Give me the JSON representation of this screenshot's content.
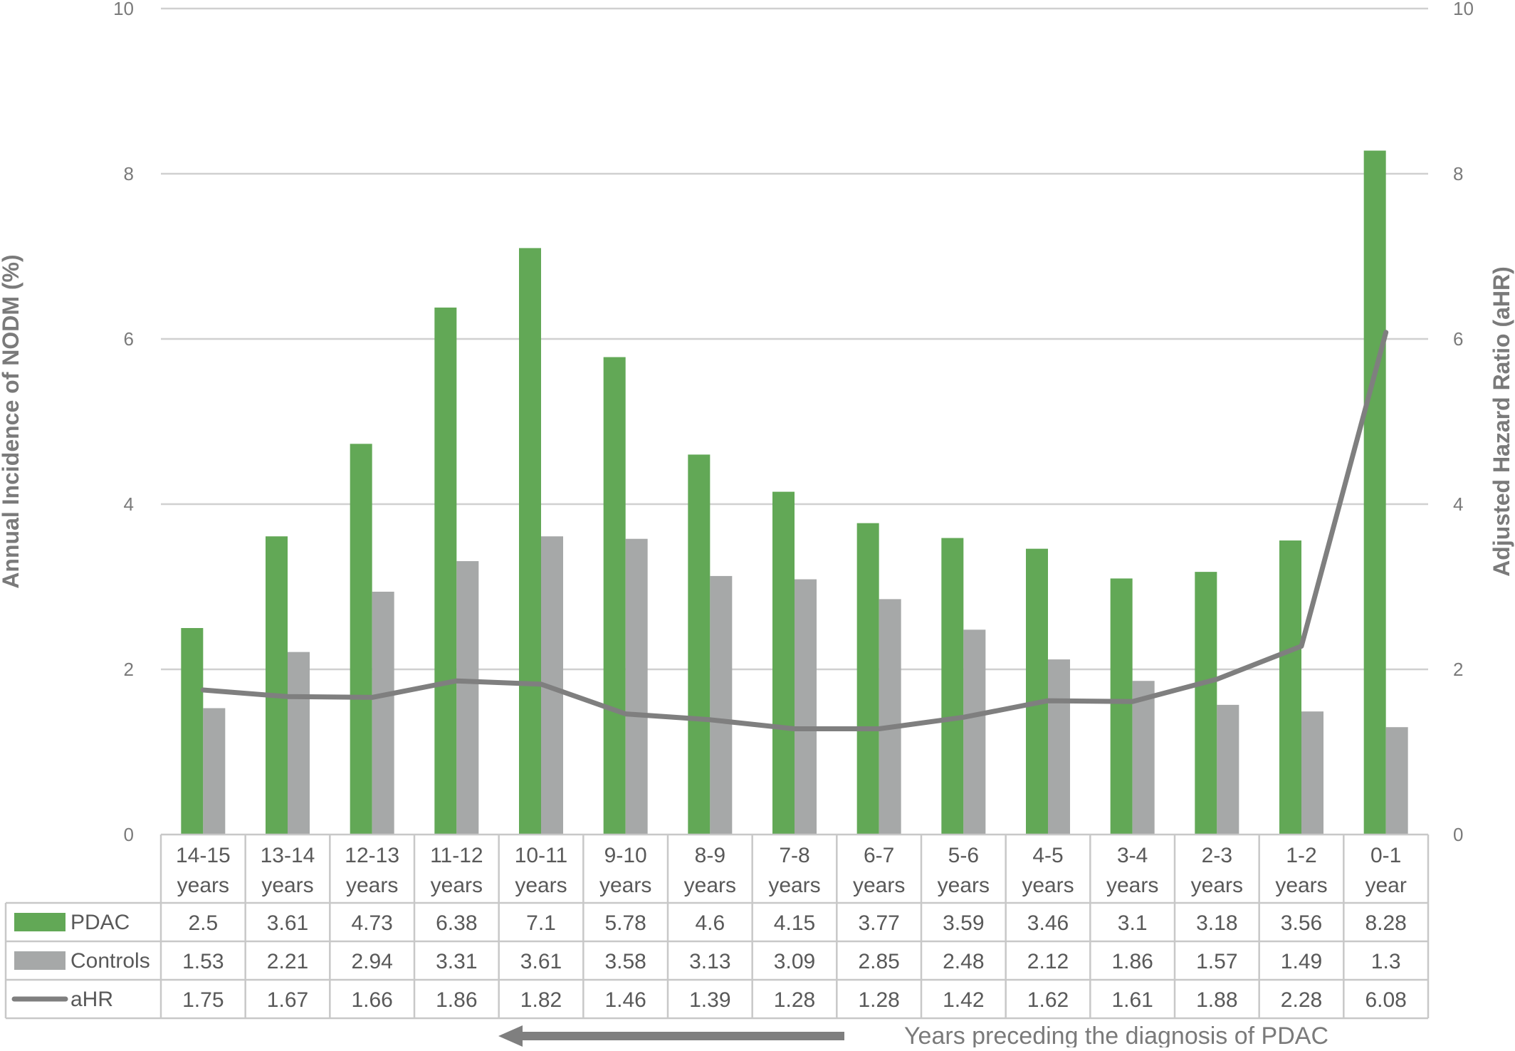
{
  "chart_data": {
    "type": "bar",
    "categories": [
      [
        "14-15",
        "years"
      ],
      [
        "13-14",
        "years"
      ],
      [
        "12-13",
        "years"
      ],
      [
        "11-12",
        "years"
      ],
      [
        "10-11",
        "years"
      ],
      [
        "9-10",
        "years"
      ],
      [
        "8-9",
        "years"
      ],
      [
        "7-8",
        "years"
      ],
      [
        "6-7",
        "years"
      ],
      [
        "5-6",
        "years"
      ],
      [
        "4-5",
        "years"
      ],
      [
        "3-4",
        "years"
      ],
      [
        "2-3",
        "years"
      ],
      [
        "1-2",
        "years"
      ],
      [
        "0-1",
        "year"
      ]
    ],
    "series": [
      {
        "name": "PDAC",
        "kind": "bar",
        "axis": "left",
        "color": "#62a856",
        "values": [
          2.5,
          3.61,
          4.73,
          6.38,
          7.1,
          5.78,
          4.6,
          4.15,
          3.77,
          3.59,
          3.46,
          3.1,
          3.18,
          3.56,
          8.28
        ]
      },
      {
        "name": "Controls",
        "kind": "bar",
        "axis": "left",
        "color": "#a6a8a8",
        "values": [
          1.53,
          2.21,
          2.94,
          3.31,
          3.61,
          3.58,
          3.13,
          3.09,
          2.85,
          2.48,
          2.12,
          1.86,
          1.57,
          1.49,
          1.3
        ]
      },
      {
        "name": "aHR",
        "kind": "line",
        "axis": "right",
        "color": "#7f7f7f",
        "values": [
          1.75,
          1.67,
          1.66,
          1.86,
          1.82,
          1.46,
          1.39,
          1.28,
          1.28,
          1.42,
          1.62,
          1.61,
          1.88,
          2.28,
          6.08
        ]
      }
    ],
    "data_table": {
      "PDAC": [
        "2.5",
        "3.61",
        "4.73",
        "6.38",
        "7.1",
        "5.78",
        "4.6",
        "4.15",
        "3.77",
        "3.59",
        "3.46",
        "3.1",
        "3.18",
        "3.56",
        "8.28"
      ],
      "Controls": [
        "1.53",
        "2.21",
        "2.94",
        "3.31",
        "3.61",
        "3.58",
        "3.13",
        "3.09",
        "2.85",
        "2.48",
        "2.12",
        "1.86",
        "1.57",
        "1.49",
        "1.3"
      ],
      "aHR": [
        "1.75",
        "1.67",
        "1.66",
        "1.86",
        "1.82",
        "1.46",
        "1.39",
        "1.28",
        "1.28",
        "1.42",
        "1.62",
        "1.61",
        "1.88",
        "2.28",
        "6.08"
      ]
    },
    "ylabel": "Annual Incidence of NODM (%)",
    "y2label": "Adjusted Hazard Ratio (aHR)",
    "ylim": [
      0,
      10
    ],
    "y2lim": [
      0,
      10
    ],
    "yticks": [
      "0",
      "2",
      "4",
      "6",
      "8",
      "10"
    ],
    "y2ticks": [
      "0",
      "2",
      "4",
      "6",
      "8",
      "10"
    ],
    "grid": true,
    "legend": "data-table",
    "footer_note": "Years preceding the diagnosis of PDAC",
    "gridline_color": "#d0d0d0",
    "arrow_color": "#7f7f7f"
  }
}
